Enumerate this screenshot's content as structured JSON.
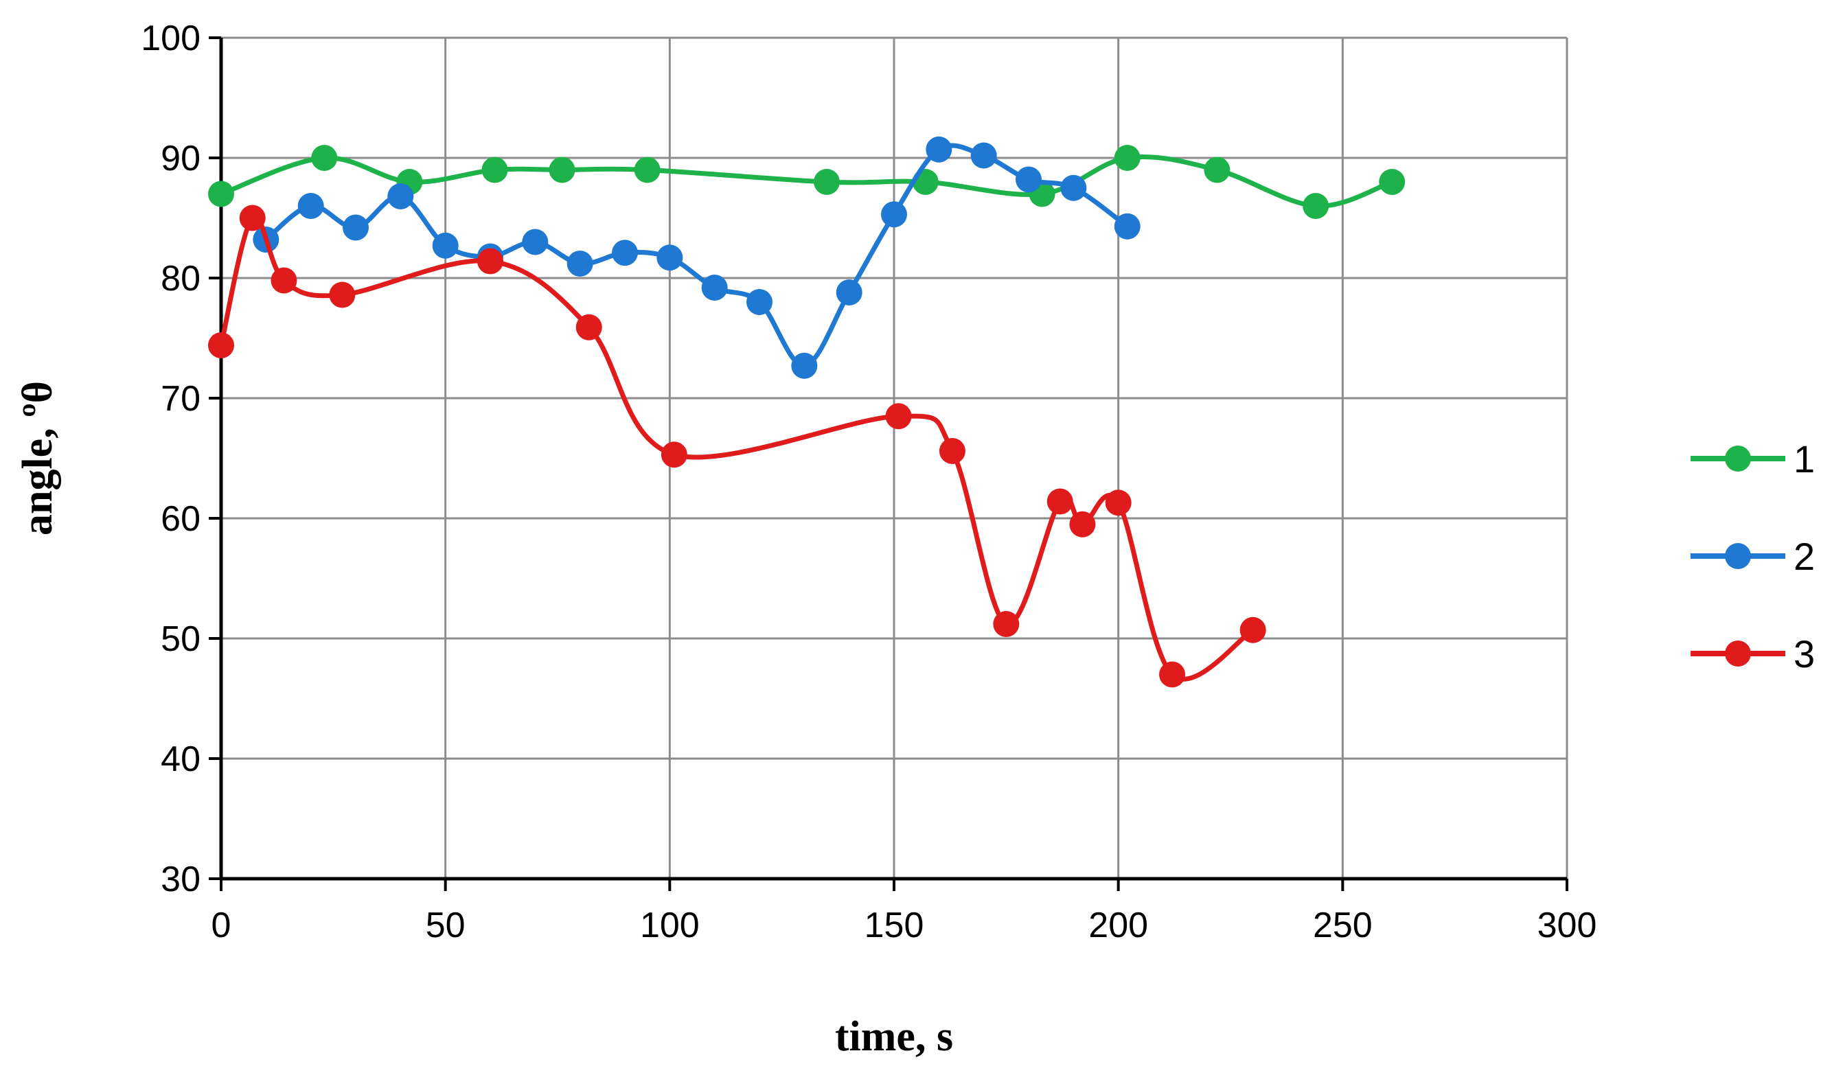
{
  "chart_data": {
    "type": "line",
    "title": "",
    "xlabel": "time, s",
    "ylabel": "angle, ºθ",
    "xlim": [
      0,
      300
    ],
    "ylim": [
      30,
      100
    ],
    "xticks": [
      0,
      50,
      100,
      150,
      200,
      250,
      300
    ],
    "yticks": [
      30,
      40,
      50,
      60,
      70,
      80,
      90,
      100
    ],
    "grid": true,
    "legend_position": "right",
    "smooth": true,
    "series": [
      {
        "name": "1",
        "color": "#1db34a",
        "points": [
          [
            0,
            87
          ],
          [
            23,
            90
          ],
          [
            42,
            88
          ],
          [
            61,
            89
          ],
          [
            76,
            89
          ],
          [
            95,
            89
          ],
          [
            135,
            88
          ],
          [
            157,
            88
          ],
          [
            183,
            87
          ],
          [
            202,
            90
          ],
          [
            222,
            89
          ],
          [
            244,
            86
          ],
          [
            261,
            88
          ]
        ]
      },
      {
        "name": "2",
        "color": "#1f78d1",
        "points": [
          [
            10,
            83.2
          ],
          [
            20,
            86
          ],
          [
            30,
            84.2
          ],
          [
            40,
            86.8
          ],
          [
            50,
            82.7
          ],
          [
            60,
            81.8
          ],
          [
            70,
            83
          ],
          [
            80,
            81.2
          ],
          [
            90,
            82.1
          ],
          [
            100,
            81.7
          ],
          [
            110,
            79.2
          ],
          [
            120,
            78
          ],
          [
            130,
            72.7
          ],
          [
            140,
            78.8
          ],
          [
            150,
            85.3
          ],
          [
            160,
            90.7
          ],
          [
            170,
            90.2
          ],
          [
            180,
            88.2
          ],
          [
            190,
            87.5
          ],
          [
            202,
            84.3
          ]
        ]
      },
      {
        "name": "3",
        "color": "#e01b1b",
        "points": [
          [
            0,
            74.4
          ],
          [
            7,
            85
          ],
          [
            14,
            79.8
          ],
          [
            27,
            78.6
          ],
          [
            60,
            81.4
          ],
          [
            82,
            75.9
          ],
          [
            101,
            65.3
          ],
          [
            151,
            68.5
          ],
          [
            163,
            65.6
          ],
          [
            175,
            51.2
          ],
          [
            187,
            61.4
          ],
          [
            192,
            59.5
          ],
          [
            200,
            61.3
          ],
          [
            212,
            47
          ],
          [
            230,
            50.7
          ]
        ]
      }
    ]
  }
}
